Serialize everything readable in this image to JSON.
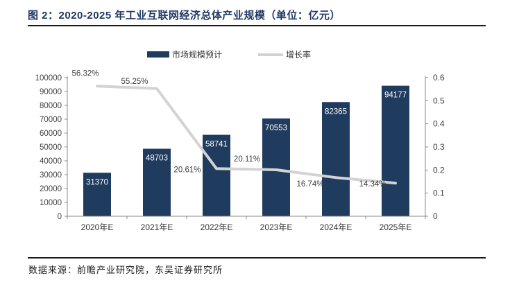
{
  "title": "图 2：2020-2025 年工业互联网经济总体产业规模（单位：亿元）",
  "footer": {
    "source_text": "数据来源：前瞻产业研究院，东吴证券研究所"
  },
  "legend": [
    {
      "label": "市场规模预计",
      "type": "bar"
    },
    {
      "label": "增长率",
      "type": "line"
    }
  ],
  "colors": {
    "bar": "#1f3b5e",
    "line": "#d3d3d3",
    "title": "#1f3864",
    "axis_line": "#898989",
    "axis_text": "#404040",
    "bar_label": "#ffffff",
    "growth_label": "#404040",
    "category_text": "#333333"
  },
  "chart_data": {
    "type": "bar+line combo",
    "categories": [
      "2020年E",
      "2021年E",
      "2022年E",
      "2023年E",
      "2024年E",
      "2025年E"
    ],
    "series": [
      {
        "name": "市场规模预计",
        "type": "bar",
        "axis": "left",
        "values": [
          31370,
          48703,
          58741,
          70553,
          82365,
          94177
        ],
        "labels": [
          "31370",
          "48703",
          "58741",
          "70553",
          "82365",
          "94177"
        ]
      },
      {
        "name": "增长率",
        "type": "line",
        "axis": "right",
        "values": [
          0.5632,
          0.5525,
          0.2061,
          0.2011,
          0.1674,
          0.1434
        ],
        "labels": [
          "56.32%",
          "55.25%",
          "20.61%",
          "20.11%",
          "16.74%",
          "14.34%"
        ]
      }
    ],
    "left_axis": {
      "min": 0,
      "max": 100000,
      "step": 10000,
      "ticks": [
        "0",
        "10000",
        "20000",
        "30000",
        "40000",
        "50000",
        "60000",
        "70000",
        "80000",
        "90000",
        "100000"
      ]
    },
    "right_axis": {
      "min": 0,
      "max": 0.6,
      "step": 0.1,
      "ticks": [
        "0",
        "0.1",
        "0.2",
        "0.3",
        "0.4",
        "0.5",
        "0.6"
      ]
    },
    "grid": false,
    "legend_position": "top-center"
  }
}
